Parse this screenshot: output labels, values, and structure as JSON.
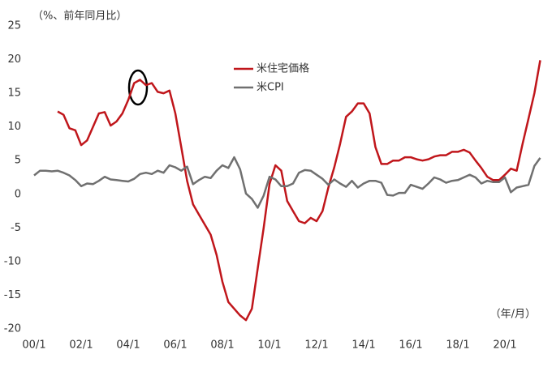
{
  "chart_data": {
    "type": "line",
    "y_axis_label": "（%、前年同月比）",
    "x_axis_label": "（年/月）",
    "categories": [
      "00/1",
      null,
      null,
      null,
      null,
      null,
      null,
      null,
      "02/1",
      null,
      null,
      null,
      null,
      null,
      null,
      null,
      "04/1",
      null,
      null,
      null,
      null,
      null,
      null,
      null,
      "06/1",
      null,
      null,
      null,
      null,
      null,
      null,
      null,
      "08/1",
      null,
      null,
      null,
      null,
      null,
      null,
      null,
      "10/1",
      null,
      null,
      null,
      null,
      null,
      null,
      null,
      "12/1",
      null,
      null,
      null,
      null,
      null,
      null,
      null,
      "14/1",
      null,
      null,
      null,
      null,
      null,
      null,
      null,
      "16/1",
      null,
      null,
      null,
      null,
      null,
      null,
      null,
      "18/1",
      null,
      null,
      null,
      null,
      null,
      null,
      null,
      "20/1",
      null,
      null,
      null,
      null,
      null,
      null
    ],
    "series": [
      {
        "name": "米住宅価格",
        "color": "#c0161b",
        "values": [
          null,
          null,
          null,
          null,
          12.3,
          11.8,
          9.8,
          9.5,
          7.3,
          8.0,
          10.0,
          12.0,
          12.2,
          10.2,
          10.8,
          12.0,
          14.0,
          16.5,
          17.0,
          16.2,
          16.5,
          15.2,
          15.0,
          15.4,
          12.0,
          7.0,
          2.0,
          -1.5,
          -3.0,
          -4.5,
          -6.0,
          -9.0,
          -13.0,
          -16.0,
          -17.0,
          -18.0,
          -18.7,
          -17.0,
          -11.0,
          -5.0,
          1.5,
          4.3,
          3.5,
          -1.0,
          -2.5,
          -4.0,
          -4.3,
          -3.5,
          -4.0,
          -2.5,
          1.0,
          4.0,
          7.5,
          11.5,
          12.3,
          13.5,
          13.5,
          12.0,
          7.0,
          4.5,
          4.5,
          5.0,
          5.0,
          5.5,
          5.5,
          5.2,
          5.0,
          5.2,
          5.6,
          5.8,
          5.8,
          6.3,
          6.3,
          6.6,
          6.2,
          5.0,
          3.9,
          2.6,
          2.1,
          2.1,
          2.9,
          3.8,
          3.5,
          7.5,
          11.2,
          15.0,
          19.9
        ]
      },
      {
        "name": "米CPI",
        "color": "#707070",
        "values": [
          2.8,
          3.5,
          3.5,
          3.4,
          3.5,
          3.2,
          2.8,
          2.1,
          1.2,
          1.6,
          1.5,
          2.0,
          2.6,
          2.2,
          2.1,
          2.0,
          1.9,
          2.3,
          3.0,
          3.2,
          3.0,
          3.5,
          3.2,
          4.3,
          4.0,
          3.5,
          4.1,
          1.5,
          2.1,
          2.6,
          2.4,
          3.5,
          4.3,
          3.9,
          5.5,
          3.7,
          0.1,
          -0.7,
          -2.0,
          -0.2,
          2.6,
          2.2,
          1.2,
          1.2,
          1.6,
          3.2,
          3.6,
          3.5,
          2.9,
          2.3,
          1.4,
          2.2,
          1.6,
          1.1,
          2.0,
          1.0,
          1.6,
          2.0,
          2.0,
          1.7,
          -0.1,
          -0.2,
          0.2,
          0.2,
          1.4,
          1.1,
          0.8,
          1.6,
          2.5,
          2.2,
          1.7,
          2.0,
          2.1,
          2.5,
          2.9,
          2.5,
          1.6,
          2.0,
          1.8,
          1.8,
          2.5,
          0.3,
          1.0,
          1.2,
          1.4,
          4.2,
          5.4
        ]
      }
    ],
    "ylim": [
      -20,
      25
    ],
    "yticks": [
      -20,
      -15,
      -10,
      -5,
      0,
      5,
      10,
      15,
      20,
      25
    ],
    "grid": false
  }
}
